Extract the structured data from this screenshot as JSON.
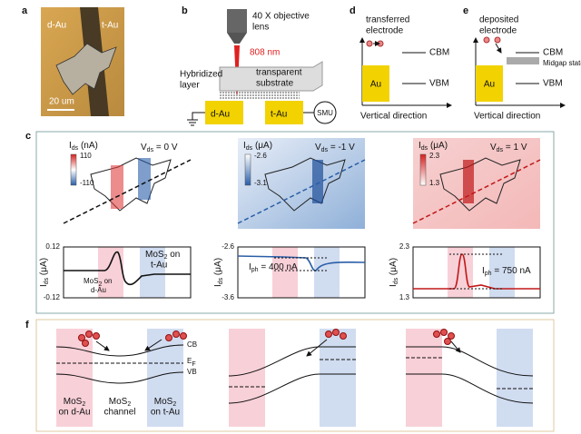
{
  "panels": {
    "a": {
      "label": "a",
      "d_au": "d-Au",
      "t_au": "t-Au",
      "scale": "20 um"
    },
    "b": {
      "label": "b",
      "lens_1": "40 X objective",
      "lens_2": "lens",
      "wavelength": "808 nm",
      "layer_1": "Hybridized",
      "layer_2": "layer",
      "substrate_1": "transparent",
      "substrate_2": "substrate",
      "d_au": "d-Au",
      "t_au": "t-Au",
      "smu": "SMU"
    },
    "d": {
      "label": "d",
      "title_1": "transferred",
      "title_2": "electrode",
      "cbm": "CBM",
      "vbm": "VBM",
      "au": "Au",
      "axis": "Vertical direction"
    },
    "e": {
      "label": "e",
      "title_1": "deposited",
      "title_2": "electrode",
      "cbm": "CBM",
      "midgap": "Midgap state",
      "vbm": "VBM",
      "au": "Au",
      "axis": "Vertical direction"
    },
    "c": {
      "label": "c",
      "columns": [
        {
          "map_unit": [
            "I",
            "ds",
            " (nA)"
          ],
          "bar_max": "110",
          "bar_min": "-110",
          "bias": [
            "V",
            "ds",
            " = 0 V"
          ],
          "y_top": "0.12",
          "y_bottom": "-0.12",
          "y_label": [
            "I",
            "ds",
            " (μA)"
          ],
          "note_t_1": [
            "MoS",
            "2",
            " on"
          ],
          "note_t_2": "t-Au",
          "note_d_1": [
            "MoS",
            "2",
            " on"
          ],
          "note_d_2": "d-Au"
        },
        {
          "map_unit": [
            "I",
            "ds",
            " (μA)"
          ],
          "bar_max": "-2.6",
          "bar_min": "-3.1",
          "bias": [
            "V",
            "ds",
            " = -1 V"
          ],
          "y_top": "-2.6",
          "y_bottom": "-3.6",
          "y_label": [
            "I",
            "ds",
            " (μA)"
          ],
          "iph": [
            "I",
            "ph",
            " = 400 nA"
          ]
        },
        {
          "map_unit": [
            "I",
            "ds",
            " (μA)"
          ],
          "bar_max": "2.3",
          "bar_min": "1.3",
          "bias": [
            "V",
            "ds",
            " = 1 V"
          ],
          "y_top": "2.3",
          "y_bottom": "1.3",
          "y_label": [
            "I",
            "ds",
            " (μA)"
          ],
          "iph": [
            "I",
            "ph",
            " = 750 nA"
          ]
        }
      ]
    },
    "f": {
      "label": "f",
      "cb": "CB",
      "ef": [
        "E",
        "F"
      ],
      "vb": "VB",
      "region_d_1": [
        "MoS",
        "2"
      ],
      "region_d_2": "on d-Au",
      "region_c_1": [
        "MoS",
        "2"
      ],
      "region_c_2": "channel",
      "region_t_1": [
        "MoS",
        "2"
      ],
      "region_t_2": "on t-Au"
    }
  }
}
